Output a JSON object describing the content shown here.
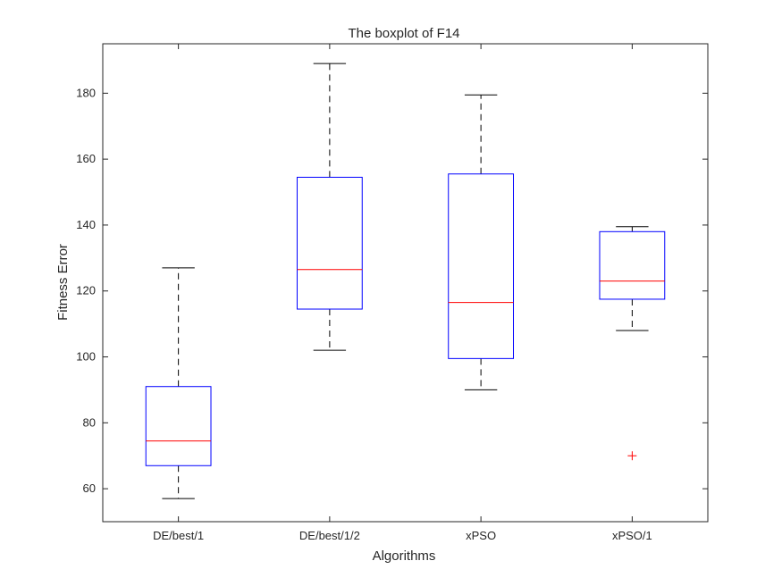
{
  "chart_data": {
    "type": "boxplot",
    "title": "The boxplot of F14",
    "xlabel": "Algorithms",
    "ylabel": "Fitness Error",
    "ylim": [
      50,
      195
    ],
    "yticks": [
      60,
      80,
      100,
      120,
      140,
      160,
      180
    ],
    "grid": false,
    "categories": [
      "DE/best/1",
      "DE/best/1/2",
      "xPSO",
      "xPSO/1"
    ],
    "boxes": [
      {
        "label": "DE/best/1",
        "min": 57,
        "q1": 67,
        "median": 74.5,
        "q3": 91,
        "max": 127,
        "outliers": []
      },
      {
        "label": "DE/best/1/2",
        "min": 102,
        "q1": 114.5,
        "median": 126.5,
        "q3": 154.5,
        "max": 189,
        "outliers": []
      },
      {
        "label": "xPSO",
        "min": 90,
        "q1": 99.5,
        "median": 116.5,
        "q3": 155.5,
        "max": 179.5,
        "outliers": []
      },
      {
        "label": "xPSO/1",
        "min": 108,
        "q1": 117.5,
        "median": 123,
        "q3": 138,
        "max": 139.5,
        "outliers": [
          70
        ]
      }
    ],
    "colors": {
      "box": "#0000ff",
      "median": "#ff0000",
      "whisker": "#000000",
      "outlier": "#ff0000",
      "axis": "#262626"
    }
  }
}
